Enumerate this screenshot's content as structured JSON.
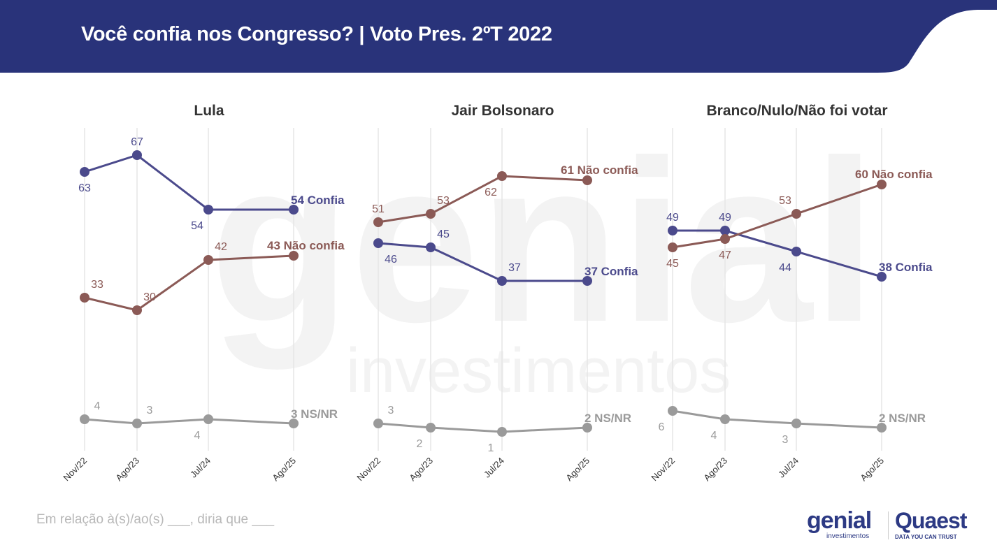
{
  "header": {
    "title": "Você confia nos Congresso? | Voto Pres. 2ºT 2022"
  },
  "footnote": "Em relação à(s)/ao(s) ___, diria que ___",
  "logos": {
    "genial": "genial",
    "genial_sub": "investimentos",
    "quaest": "Quaest",
    "quaest_sub": "DATA YOU CAN TRUST"
  },
  "watermark": {
    "main": "genial",
    "sub": "investimentos"
  },
  "colors": {
    "header": "#29337a",
    "confia": "#4b4a8c",
    "nao_confia": "#8b5a56",
    "nsnr": "#9a9a9a",
    "grid": "#e6e6e6"
  },
  "chart_data": [
    {
      "type": "line",
      "title": "Lula",
      "categories": [
        "Nov/22",
        "Ago/23",
        "Jul/24",
        "Ago/25"
      ],
      "ylim": [
        0,
        70
      ],
      "series": [
        {
          "name": "Confia",
          "key": "confia",
          "values": [
            63,
            67,
            54,
            54
          ],
          "end_label": "54 Confia",
          "label_pos": [
            "below",
            "above",
            "below-left",
            "end"
          ]
        },
        {
          "name": "Não confia",
          "key": "nao_confia",
          "values": [
            33,
            30,
            42,
            43
          ],
          "end_label": "43 Não confia",
          "label_pos": [
            "above-right",
            "above-right",
            "above-right",
            "end-left"
          ]
        },
        {
          "name": "NS/NR",
          "key": "nsnr",
          "values": [
            4,
            3,
            4,
            3
          ],
          "end_label": "3 NS/NR",
          "label_pos": [
            "above-right",
            "above-right",
            "below-left",
            "end"
          ]
        }
      ]
    },
    {
      "type": "line",
      "title": "Jair Bolsonaro",
      "categories": [
        "Nov/22",
        "Ago/23",
        "Jul/24",
        "Ago/25"
      ],
      "ylim": [
        0,
        70
      ],
      "series": [
        {
          "name": "Confia",
          "key": "confia",
          "values": [
            46,
            45,
            37,
            37
          ],
          "end_label": "37 Confia",
          "label_pos": [
            "below-right",
            "above-right",
            "above-right",
            "end"
          ]
        },
        {
          "name": "Não confia",
          "key": "nao_confia",
          "values": [
            51,
            53,
            62,
            61
          ],
          "end_label": "61 Não confia",
          "label_pos": [
            "above",
            "above-right",
            "below-left",
            "end-left"
          ]
        },
        {
          "name": "NS/NR",
          "key": "nsnr",
          "values": [
            3,
            2,
            1,
            2
          ],
          "end_label": "2 NS/NR",
          "label_pos": [
            "above-right",
            "below-left",
            "below-left",
            "end"
          ]
        }
      ]
    },
    {
      "type": "line",
      "title": "Branco/Nulo/Não foi votar",
      "categories": [
        "Nov/22",
        "Ago/23",
        "Jul/24",
        "Ago/25"
      ],
      "ylim": [
        0,
        70
      ],
      "series": [
        {
          "name": "Confia",
          "key": "confia",
          "values": [
            49,
            49,
            44,
            38
          ],
          "end_label": "38 Confia",
          "label_pos": [
            "above",
            "above",
            "below-left",
            "end"
          ]
        },
        {
          "name": "Não confia",
          "key": "nao_confia",
          "values": [
            45,
            47,
            53,
            60
          ],
          "end_label": "60 Não confia",
          "label_pos": [
            "below",
            "below",
            "above-left",
            "end-left"
          ]
        },
        {
          "name": "NS/NR",
          "key": "nsnr",
          "values": [
            6,
            4,
            3,
            2
          ],
          "end_label": "2 NS/NR",
          "label_pos": [
            "below-left",
            "below-left",
            "below-left",
            "end"
          ]
        }
      ]
    }
  ]
}
